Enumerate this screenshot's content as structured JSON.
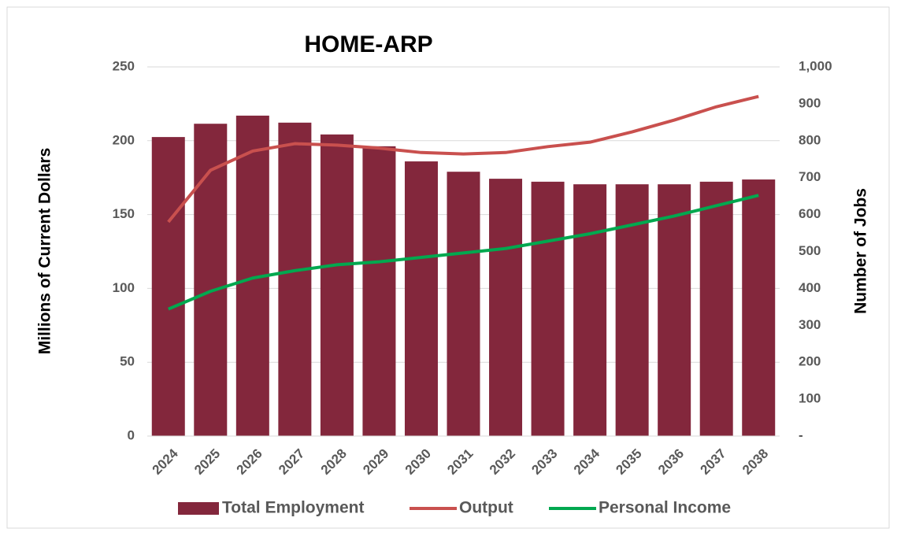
{
  "chart_data": {
    "type": "combo",
    "title": "HOME-ARP",
    "y_label": "Millions of Current Dollars",
    "y2_label": "Number of Jobs",
    "categories": [
      "2024",
      "2025",
      "2026",
      "2027",
      "2028",
      "2029",
      "2030",
      "2031",
      "2032",
      "2033",
      "2034",
      "2035",
      "2036",
      "2037",
      "2038"
    ],
    "series": [
      {
        "name": "Total Employment",
        "type": "bar",
        "axis": "y2",
        "color": "#83273c",
        "values": [
          810,
          846,
          868,
          849,
          817,
          785,
          744,
          716,
          697,
          689,
          682,
          682,
          682,
          689,
          695
        ]
      },
      {
        "name": "Output",
        "type": "line",
        "color": "#c9504e",
        "values": [
          145,
          180,
          193,
          198,
          197,
          195,
          192,
          191,
          192,
          196,
          199,
          206,
          214,
          223,
          230
        ]
      },
      {
        "name": "Personal Income",
        "type": "line",
        "color": "#00a84f",
        "values": [
          86,
          98,
          107,
          112,
          116,
          118,
          121,
          124,
          127,
          132,
          137,
          143,
          149,
          156,
          163
        ]
      }
    ],
    "ylim": [
      0,
      250
    ],
    "yticks": [
      0,
      50,
      100,
      150,
      200,
      250
    ],
    "y2lim": [
      0,
      1000
    ],
    "y2ticks": [
      {
        "value": 0,
        "label": "-"
      },
      100,
      200,
      300,
      400,
      500,
      600,
      700,
      800,
      900,
      {
        "value": 1000,
        "label": "1,000"
      }
    ],
    "grid": true,
    "legend": "bottom"
  }
}
